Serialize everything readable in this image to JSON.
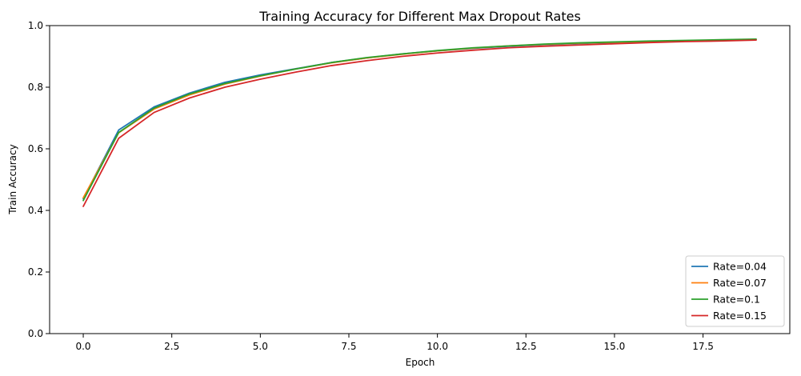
{
  "chart_data": {
    "type": "line",
    "title": "Training Accuracy for Different Max Dropout Rates",
    "xlabel": "Epoch",
    "ylabel": "Train Accuracy",
    "xlim": [
      -0.95,
      19.95
    ],
    "ylim": [
      0,
      1
    ],
    "xticks": [
      0.0,
      2.5,
      5.0,
      7.5,
      10.0,
      12.5,
      15.0,
      17.5
    ],
    "xtick_labels": [
      "0.0",
      "2.5",
      "5.0",
      "7.5",
      "10.0",
      "12.5",
      "15.0",
      "17.5"
    ],
    "yticks": [
      0.0,
      0.2,
      0.4,
      0.6,
      0.8,
      1.0
    ],
    "ytick_labels": [
      "0.0",
      "0.2",
      "0.4",
      "0.6",
      "0.8",
      "1.0"
    ],
    "grid": false,
    "legend_position": "bottom-right",
    "x": [
      0,
      1,
      2,
      3,
      4,
      5,
      6,
      7,
      8,
      9,
      10,
      11,
      12,
      13,
      14,
      15,
      16,
      17,
      18,
      19
    ],
    "series": [
      {
        "name": "Rate=0.04",
        "color": "#1f77b4",
        "values": [
          0.438,
          0.661,
          0.736,
          0.781,
          0.816,
          0.84,
          0.86,
          0.88,
          0.895,
          0.908,
          0.918,
          0.926,
          0.933,
          0.938,
          0.942,
          0.945,
          0.948,
          0.95,
          0.952,
          0.955
        ]
      },
      {
        "name": "Rate=0.07",
        "color": "#ff7f0e",
        "values": [
          0.441,
          0.652,
          0.729,
          0.775,
          0.81,
          0.836,
          0.859,
          0.879,
          0.895,
          0.907,
          0.918,
          0.927,
          0.934,
          0.939,
          0.943,
          0.946,
          0.949,
          0.951,
          0.953,
          0.955
        ]
      },
      {
        "name": "Rate=0.1",
        "color": "#2ca02c",
        "values": [
          0.432,
          0.653,
          0.732,
          0.778,
          0.812,
          0.837,
          0.859,
          0.88,
          0.896,
          0.908,
          0.919,
          0.928,
          0.934,
          0.94,
          0.944,
          0.947,
          0.95,
          0.952,
          0.954,
          0.956
        ]
      },
      {
        "name": "Rate=0.15",
        "color": "#d62728",
        "values": [
          0.413,
          0.634,
          0.718,
          0.765,
          0.8,
          0.826,
          0.849,
          0.87,
          0.886,
          0.9,
          0.911,
          0.92,
          0.928,
          0.933,
          0.937,
          0.941,
          0.945,
          0.948,
          0.95,
          0.953
        ]
      }
    ]
  }
}
